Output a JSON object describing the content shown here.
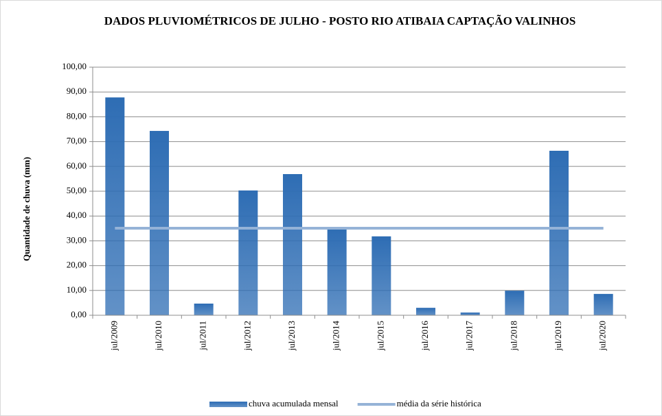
{
  "chart_data": {
    "type": "bar",
    "title": "DADOS PLUVIOMÉTRICOS DE JULHO - POSTO RIO ATIBAIA CAPTAÇÃO VALINHOS",
    "ylabel": "Quantidade de chuva (mm)",
    "categories": [
      "jul/2009",
      "jul/2010",
      "jul/2011",
      "jul/2012",
      "jul/2013",
      "jul/2014",
      "jul/2015",
      "jul/2016",
      "jul/2017",
      "jul/2018",
      "jul/2019",
      "jul/2020"
    ],
    "series": [
      {
        "name": "chuva acumulada mensal",
        "type": "bar",
        "color": "#2e6db4",
        "values": [
          87.8,
          74.3,
          4.7,
          50.3,
          56.9,
          34.8,
          31.8,
          3.0,
          1.1,
          9.9,
          66.3,
          8.6
        ]
      },
      {
        "name": "média da série histórica",
        "type": "line",
        "color": "#95b3d7",
        "values": [
          35.1,
          35.1,
          35.1,
          35.1,
          35.1,
          35.1,
          35.1,
          35.1,
          35.1,
          35.1,
          35.1,
          35.1
        ]
      }
    ],
    "ylim": [
      0,
      100
    ],
    "yticks": [
      {
        "value": 0,
        "label": "0,00"
      },
      {
        "value": 10,
        "label": "10,00"
      },
      {
        "value": 20,
        "label": "20,00"
      },
      {
        "value": 30,
        "label": "30,00"
      },
      {
        "value": 40,
        "label": "40,00"
      },
      {
        "value": 50,
        "label": "50,00"
      },
      {
        "value": 60,
        "label": "60,00"
      },
      {
        "value": 70,
        "label": "70,00"
      },
      {
        "value": 80,
        "label": "80,00"
      },
      {
        "value": 90,
        "label": "90,00"
      },
      {
        "value": 100,
        "label": "100,00"
      }
    ],
    "grid": true,
    "legend": "bottom"
  }
}
